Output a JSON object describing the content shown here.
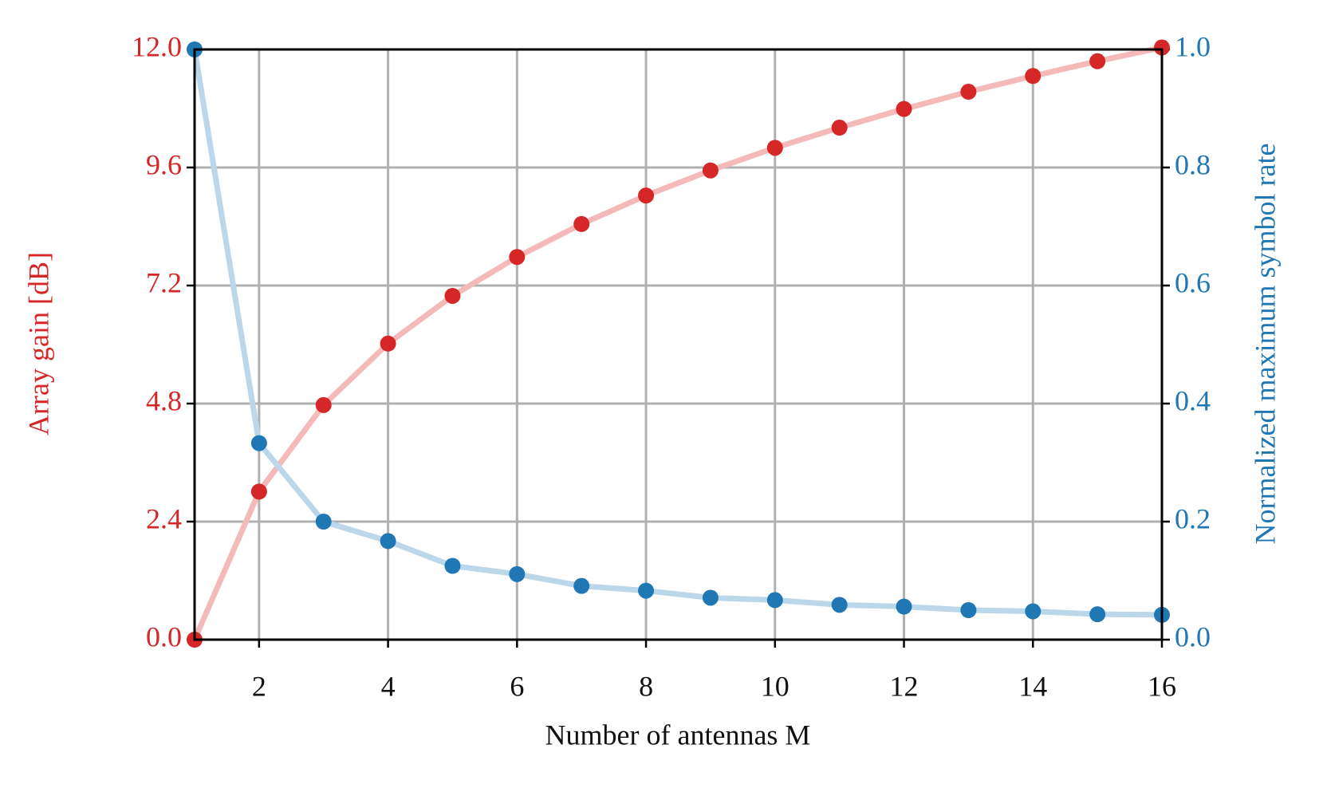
{
  "chart_data": {
    "type": "line",
    "x_label": "Number of antennas M",
    "y_label": "Array gain [dB]",
    "y2_label": "Normalized maximum symbol rate",
    "x": [
      1,
      2,
      3,
      4,
      5,
      6,
      7,
      8,
      9,
      10,
      11,
      12,
      13,
      14,
      15,
      16
    ],
    "xlim": [
      1,
      16
    ],
    "xticks": [
      2,
      4,
      6,
      8,
      10,
      12,
      14,
      16
    ],
    "ylim": [
      0,
      12
    ],
    "yticks": [
      {
        "value": 0,
        "label": "0.0"
      },
      2.4,
      4.8,
      7.2,
      9.6,
      {
        "value": 12,
        "label": "12.0"
      }
    ],
    "y2lim": [
      0,
      1
    ],
    "y2ticks": [
      {
        "value": 0,
        "label": "0.0"
      },
      0.2,
      0.4,
      0.6,
      0.8,
      {
        "value": 1,
        "label": "1.0"
      }
    ],
    "grid": true,
    "series": [
      {
        "name": "Array gain",
        "color": "#d62728",
        "line_color": "#f4baba",
        "values": [
          0,
          3.01,
          4.77,
          6.02,
          6.99,
          7.78,
          8.45,
          9.03,
          9.54,
          10,
          10.41,
          10.79,
          11.14,
          11.46,
          11.76,
          12.04
        ]
      },
      {
        "name": "Normalized maximum symbol rate",
        "color": "#1f77b4",
        "line_color": "#bcd6ea",
        "axis": "y2",
        "values": [
          1,
          0.333,
          0.2,
          0.167,
          0.125,
          0.111,
          0.091,
          0.083,
          0.071,
          0.067,
          0.059,
          0.056,
          0.05,
          0.048,
          0.043,
          0.042
        ]
      }
    ]
  }
}
